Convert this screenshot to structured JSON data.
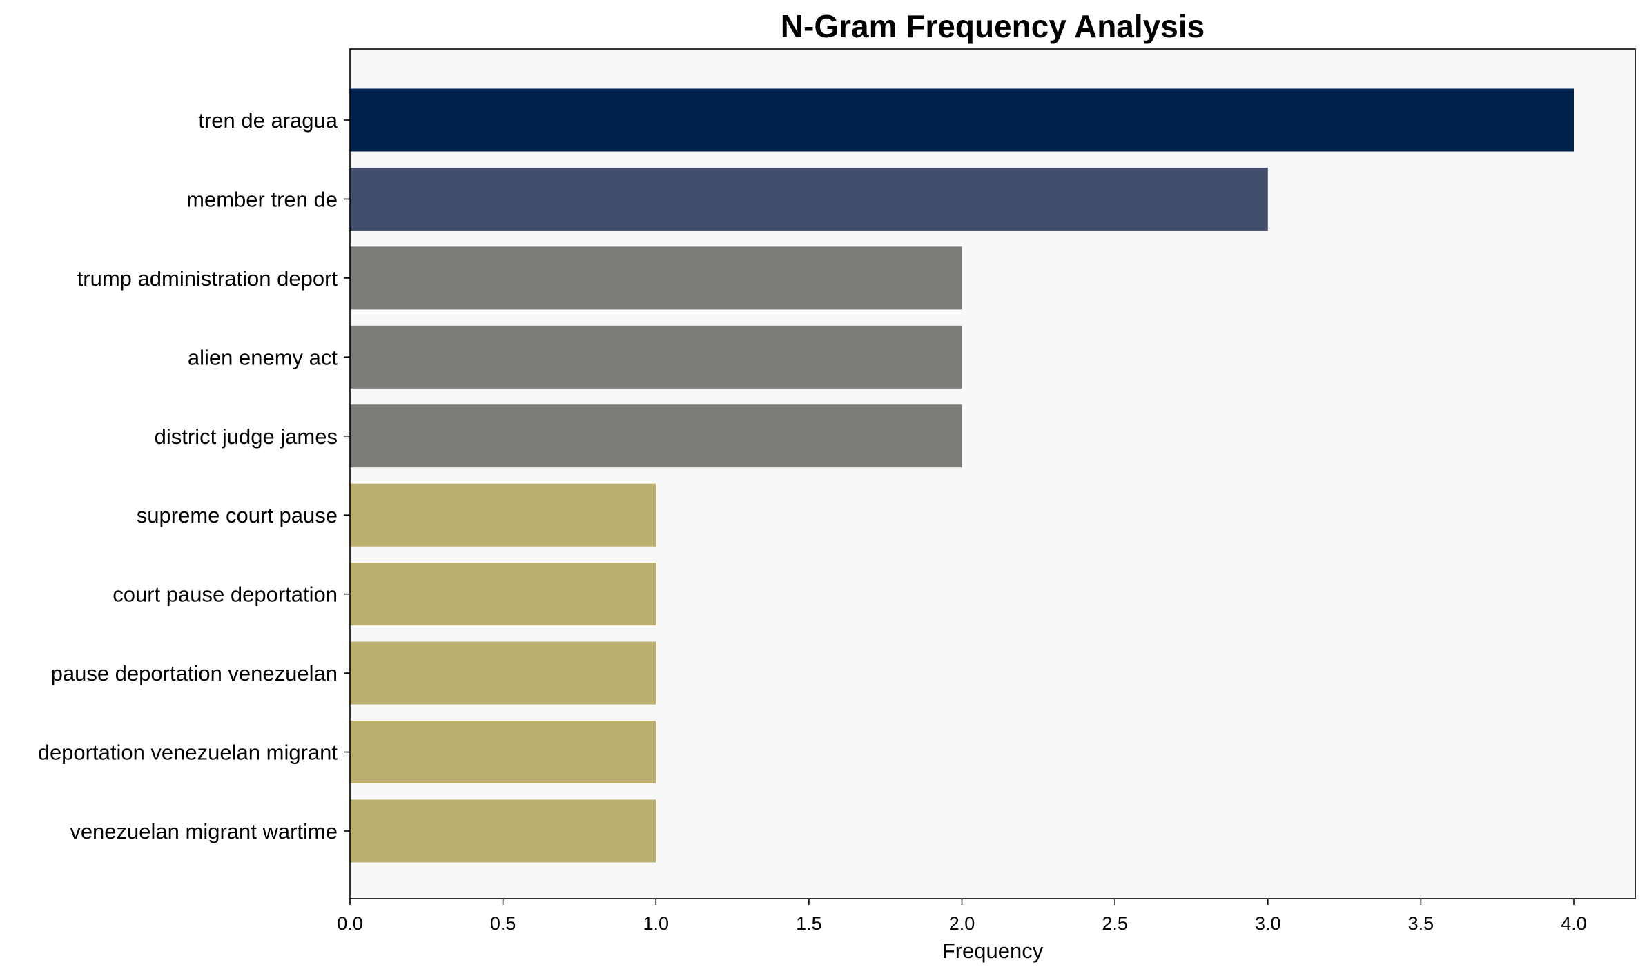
{
  "chart_data": {
    "type": "bar",
    "orientation": "horizontal",
    "title": "N-Gram Frequency Analysis",
    "xlabel": "Frequency",
    "ylabel": "",
    "xlim": [
      0,
      4.2
    ],
    "xticks": [
      "0.0",
      "0.5",
      "1.0",
      "1.5",
      "2.0",
      "2.5",
      "3.0",
      "3.5",
      "4.0"
    ],
    "grid": false,
    "categories": [
      "tren de aragua",
      "member tren de",
      "trump administration deport",
      "alien enemy act",
      "district judge james",
      "supreme court pause",
      "court pause deportation",
      "pause deportation venezuelan",
      "deportation venezuelan migrant",
      "venezuelan migrant wartime"
    ],
    "values": [
      4,
      3,
      2,
      2,
      2,
      1,
      1,
      1,
      1,
      1
    ],
    "colors": [
      "#00224e",
      "#434e6c",
      "#7c7b78",
      "#7c7b78",
      "#7c7b78",
      "#bcae6e",
      "#bcae6e",
      "#bcae6e",
      "#bcae6e",
      "#bcae6e"
    ],
    "plot_background": "#f8f8f8"
  }
}
